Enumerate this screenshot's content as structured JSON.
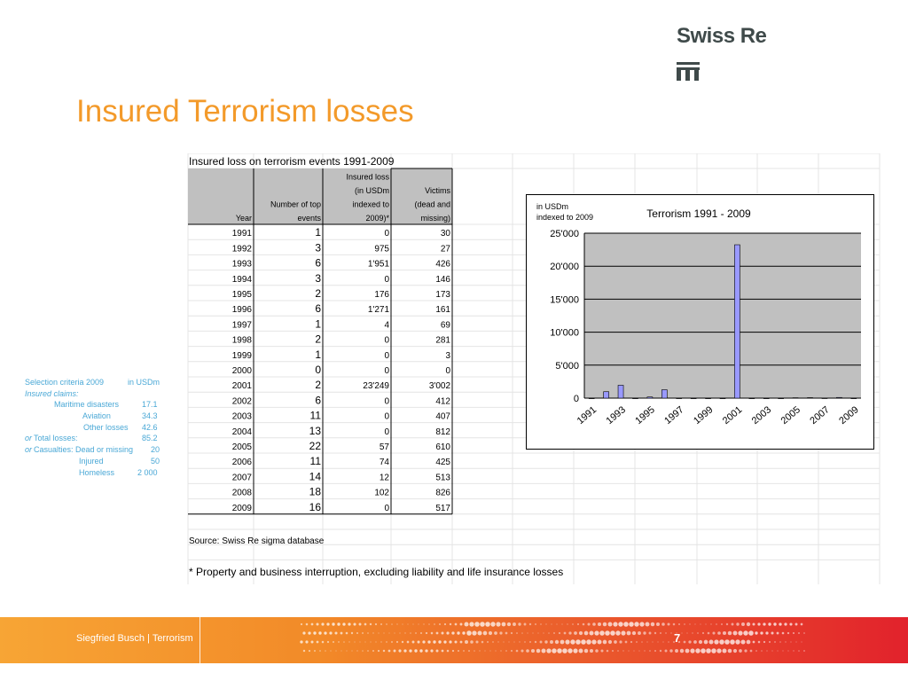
{
  "logo": {
    "text": "Swiss Re"
  },
  "title": "Insured Terrorism losses",
  "table": {
    "caption": "Insured loss on terrorism events 1991-2009",
    "headers": {
      "year": "Year",
      "events": [
        "Number of top",
        "events"
      ],
      "loss": [
        "Insured loss",
        "(in USDm",
        "indexed to",
        "2009)*"
      ],
      "victims": [
        "Victims",
        "(dead and",
        "missing)"
      ]
    },
    "rows": [
      {
        "year": "1991",
        "events": "1",
        "loss": "0",
        "victims": "30"
      },
      {
        "year": "1992",
        "events": "3",
        "loss": "975",
        "victims": "27"
      },
      {
        "year": "1993",
        "events": "6",
        "loss": "1'951",
        "victims": "426"
      },
      {
        "year": "1994",
        "events": "3",
        "loss": "0",
        "victims": "146"
      },
      {
        "year": "1995",
        "events": "2",
        "loss": "176",
        "victims": "173"
      },
      {
        "year": "1996",
        "events": "6",
        "loss": "1'271",
        "victims": "161"
      },
      {
        "year": "1997",
        "events": "1",
        "loss": "4",
        "victims": "69"
      },
      {
        "year": "1998",
        "events": "2",
        "loss": "0",
        "victims": "281"
      },
      {
        "year": "1999",
        "events": "1",
        "loss": "0",
        "victims": "3"
      },
      {
        "year": "2000",
        "events": "0",
        "loss": "0",
        "victims": "0"
      },
      {
        "year": "2001",
        "events": "2",
        "loss": "23'249",
        "victims": "3'002"
      },
      {
        "year": "2002",
        "events": "6",
        "loss": "0",
        "victims": "412"
      },
      {
        "year": "2003",
        "events": "11",
        "loss": "0",
        "victims": "407"
      },
      {
        "year": "2004",
        "events": "13",
        "loss": "0",
        "victims": "812"
      },
      {
        "year": "2005",
        "events": "22",
        "loss": "57",
        "victims": "610"
      },
      {
        "year": "2006",
        "events": "11",
        "loss": "74",
        "victims": "425"
      },
      {
        "year": "2007",
        "events": "14",
        "loss": "12",
        "victims": "513"
      },
      {
        "year": "2008",
        "events": "18",
        "loss": "102",
        "victims": "826"
      },
      {
        "year": "2009",
        "events": "16",
        "loss": "0",
        "victims": "517"
      }
    ],
    "source": "Source: Swiss Re sigma database",
    "footnote": "* Property and business interruption, excluding liability and life insurance losses"
  },
  "chart_data": {
    "type": "bar",
    "title": "Terrorism 1991 - 2009",
    "ylabel": [
      "in USDm",
      "indexed to 2009"
    ],
    "ylim": [
      0,
      25000
    ],
    "yticks": [
      0,
      5000,
      10000,
      15000,
      20000,
      25000
    ],
    "ytick_labels": [
      "0",
      "5'000",
      "10'000",
      "15'000",
      "20'000",
      "25'000"
    ],
    "categories": [
      "1991",
      "1992",
      "1993",
      "1994",
      "1995",
      "1996",
      "1997",
      "1998",
      "1999",
      "2000",
      "2001",
      "2002",
      "2003",
      "2004",
      "2005",
      "2006",
      "2007",
      "2008",
      "2009"
    ],
    "xtick_labels": [
      "1991",
      "1993",
      "1995",
      "1997",
      "1999",
      "2001",
      "2003",
      "2005",
      "2007",
      "2009"
    ],
    "values": [
      0,
      975,
      1951,
      0,
      176,
      1271,
      4,
      0,
      0,
      0,
      23249,
      0,
      0,
      0,
      57,
      74,
      12,
      102,
      0
    ],
    "grid": true,
    "plot_background": "#c0c0c0",
    "bar_color": "#9999ff"
  },
  "criteria": {
    "header": [
      "Selection criteria 2009",
      "in USDm"
    ],
    "insured_claims": "Insured claims:",
    "lines": [
      {
        "prefix": "",
        "label": "Maritime disasters",
        "value": "17.1"
      },
      {
        "prefix": "",
        "label": "Aviation",
        "value": "34.3"
      },
      {
        "prefix": "",
        "label": "Other losses",
        "value": "42.6"
      },
      {
        "prefix": "or",
        "label": "Total losses:",
        "value": "85.2"
      },
      {
        "prefix": "or",
        "label": "Casualties:  Dead or missing",
        "value": "20"
      },
      {
        "prefix": "",
        "label": "Injured",
        "value": "50"
      },
      {
        "prefix": "",
        "label": "Homeless",
        "value": "2 000"
      }
    ]
  },
  "footer": {
    "text": "Siegfried Busch | Terrorism",
    "page": "7"
  }
}
